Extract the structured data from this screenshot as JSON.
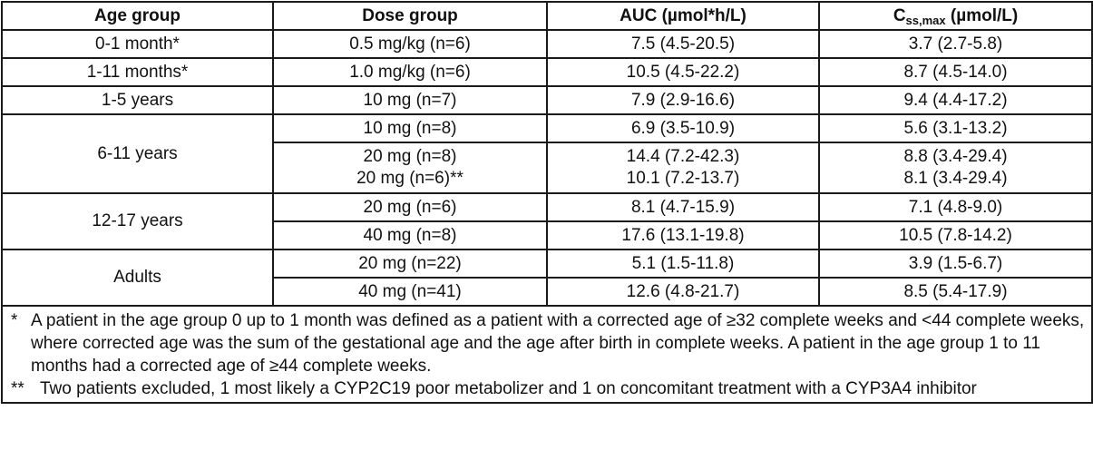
{
  "headers": {
    "age_group": "Age group",
    "dose_group": "Dose group",
    "auc": "AUC (µmol*h/L)",
    "css_prefix": "C",
    "css_sub": "ss,max",
    "css_suffix": " (µmol/L)"
  },
  "rows": [
    {
      "age": "0-1 month*",
      "dose": "0.5 mg/kg (n=6)",
      "auc": "7.5 (4.5-20.5)",
      "css": "3.7 (2.7-5.8)"
    },
    {
      "age": "1-11 months*",
      "dose": "1.0 mg/kg (n=6)",
      "auc": "10.5 (4.5-22.2)",
      "css": "8.7 (4.5-14.0)"
    },
    {
      "age": "1-5 years",
      "dose": "10 mg (n=7)",
      "auc": "7.9 (2.9-16.6)",
      "css": "9.4 (4.4-17.2)"
    },
    {
      "age": "6-11 years",
      "dose": "10 mg (n=8)",
      "auc": "6.9 (3.5-10.9)",
      "css": "5.6 (3.1-13.2)"
    },
    {
      "dose": "20 mg (n=8)",
      "dose2": "20 mg (n=6)**",
      "auc": "14.4 (7.2-42.3)",
      "auc2": "10.1 (7.2-13.7)",
      "css": "8.8 (3.4-29.4)",
      "css2": "8.1 (3.4-29.4)"
    },
    {
      "age": "12-17 years",
      "dose": "20 mg (n=6)",
      "auc": "8.1 (4.7-15.9)",
      "css": "7.1 (4.8-9.0)"
    },
    {
      "dose": "40 mg (n=8)",
      "auc": "17.6 (13.1-19.8)",
      "css": "10.5 (7.8-14.2)"
    },
    {
      "age": "Adults",
      "dose": "20 mg (n=22)",
      "auc": "5.1 (1.5-11.8)",
      "css": "3.9 (1.5-6.7)"
    },
    {
      "dose": "40 mg (n=41)",
      "auc": "12.6 (4.8-21.7)",
      "css": "8.5 (5.4-17.9)"
    }
  ],
  "footnotes": [
    {
      "mark": "*",
      "text": "A patient in the age group 0 up to 1 month was defined as a patient with a corrected age of ≥32 complete weeks and <44 complete weeks, where corrected age was the sum of the gestational age and the age after birth in complete weeks. A patient in the age group 1 to 11 months had a corrected age of ≥44 complete weeks."
    },
    {
      "mark": "**",
      "text": "Two patients excluded, 1 most likely a CYP2C19 poor metabolizer and 1 on concomitant treatment with a CYP3A4 inhibitor"
    }
  ]
}
